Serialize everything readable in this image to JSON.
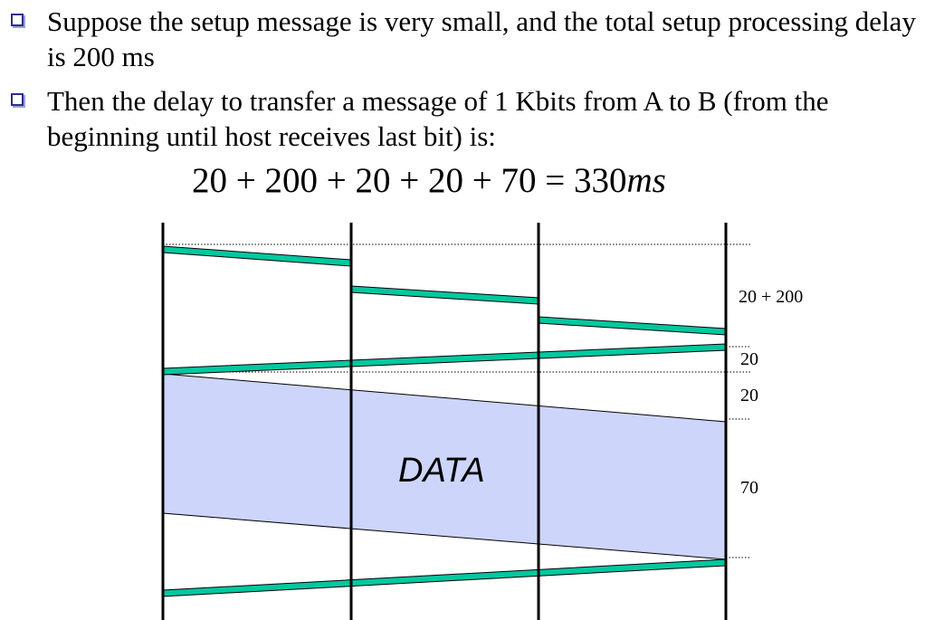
{
  "bullets": [
    {
      "text": "Suppose the setup message is very small, and the total setup processing delay is 200 ms"
    },
    {
      "text": "Then the delay to transfer a message of 1 Kbits from A to B (from the beginning until host receives last bit) is:"
    }
  ],
  "formula": {
    "expression": "20 + 200 + 20 + 20 + 70 = 330",
    "unit": "ms"
  },
  "diagram": {
    "data_label": "DATA",
    "delay_labels": [
      "20 + 200",
      "20",
      "20",
      "70"
    ],
    "colors": {
      "signal": "#00c8a0",
      "data_fill": "#cdd5fb",
      "line": "#000000"
    }
  }
}
